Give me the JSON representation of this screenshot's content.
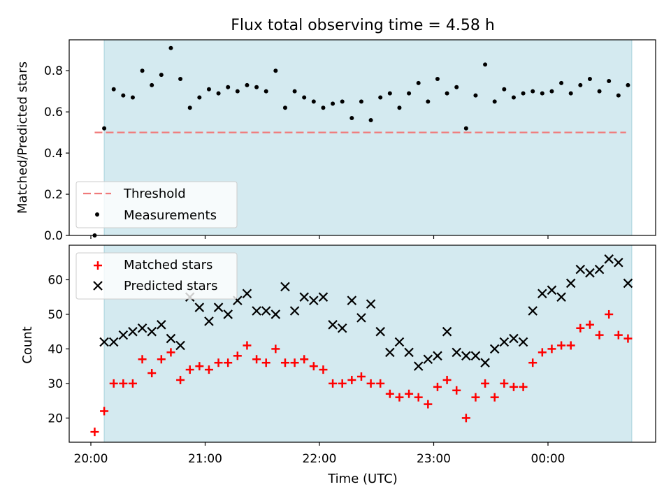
{
  "title": "Flux total observing time = 4.58 h",
  "xlabel": "Time (UTC)",
  "x_ticks": [
    "20:00",
    "21:00",
    "22:00",
    "23:00",
    "00:00"
  ],
  "observing_window": [
    "20:07",
    "00:44"
  ],
  "chart_data": [
    {
      "type": "scatter",
      "ylabel": "Matched/Predicted stars",
      "ylim": [
        0,
        0.95
      ],
      "yticks": [
        "0.0",
        "0.2",
        "0.4",
        "0.6",
        "0.8"
      ],
      "threshold": 0.5,
      "threshold_range": [
        "20:02",
        "00:41"
      ],
      "legend": {
        "placement": "lower-left",
        "entries": [
          "Threshold",
          "Measurements"
        ]
      },
      "colors": {
        "threshold": "#f07a7a",
        "measurements": "#000000",
        "window": "#d4eaf0"
      },
      "series": [
        {
          "name": "Measurements",
          "x": [
            "20:02",
            "20:07",
            "20:12",
            "20:17",
            "20:22",
            "20:27",
            "20:32",
            "20:37",
            "20:42",
            "20:47",
            "20:52",
            "20:57",
            "21:02",
            "21:07",
            "21:12",
            "21:17",
            "21:22",
            "21:27",
            "21:32",
            "21:37",
            "21:42",
            "21:47",
            "21:52",
            "21:57",
            "22:02",
            "22:07",
            "22:12",
            "22:17",
            "22:22",
            "22:27",
            "22:32",
            "22:37",
            "22:42",
            "22:47",
            "22:52",
            "22:57",
            "23:02",
            "23:07",
            "23:12",
            "23:17",
            "23:22",
            "23:27",
            "23:32",
            "23:37",
            "23:42",
            "23:47",
            "23:52",
            "23:57",
            "00:02",
            "00:07",
            "00:12",
            "00:17",
            "00:22",
            "00:27",
            "00:32",
            "00:37",
            "00:42"
          ],
          "y": [
            0.0,
            0.52,
            0.71,
            0.68,
            0.67,
            0.8,
            0.73,
            0.78,
            0.91,
            0.76,
            0.62,
            0.67,
            0.71,
            0.69,
            0.72,
            0.7,
            0.73,
            0.72,
            0.7,
            0.8,
            0.62,
            0.7,
            0.67,
            0.65,
            0.62,
            0.64,
            0.65,
            0.57,
            0.65,
            0.56,
            0.67,
            0.69,
            0.62,
            0.69,
            0.74,
            0.65,
            0.76,
            0.69,
            0.72,
            0.52,
            0.68,
            0.83,
            0.65,
            0.71,
            0.67,
            0.69,
            0.7,
            0.69,
            0.7,
            0.74,
            0.69,
            0.73,
            0.76,
            0.7,
            0.75,
            0.68,
            0.73
          ]
        }
      ]
    },
    {
      "type": "scatter",
      "ylabel": "Count",
      "ylim": [
        13,
        70
      ],
      "yticks": [
        "20",
        "30",
        "40",
        "50",
        "60"
      ],
      "legend": {
        "placement": "top-left",
        "entries": [
          "Matched stars",
          "Predicted stars"
        ]
      },
      "colors": {
        "matched": "#ff0000",
        "predicted": "#000000",
        "window": "#d4eaf0"
      },
      "x": [
        "20:02",
        "20:07",
        "20:12",
        "20:17",
        "20:22",
        "20:27",
        "20:32",
        "20:37",
        "20:42",
        "20:47",
        "20:52",
        "20:57",
        "21:02",
        "21:07",
        "21:12",
        "21:17",
        "21:22",
        "21:27",
        "21:32",
        "21:37",
        "21:42",
        "21:47",
        "21:52",
        "21:57",
        "22:02",
        "22:07",
        "22:12",
        "22:17",
        "22:22",
        "22:27",
        "22:32",
        "22:37",
        "22:42",
        "22:47",
        "22:52",
        "22:57",
        "23:02",
        "23:07",
        "23:12",
        "23:17",
        "23:22",
        "23:27",
        "23:32",
        "23:37",
        "23:42",
        "23:47",
        "23:52",
        "23:57",
        "00:02",
        "00:07",
        "00:12",
        "00:17",
        "00:22",
        "00:27",
        "00:32",
        "00:37",
        "00:42"
      ],
      "series": [
        {
          "name": "Matched stars",
          "values": [
            16,
            22,
            30,
            30,
            30,
            37,
            33,
            37,
            39,
            31,
            34,
            35,
            34,
            36,
            36,
            38,
            41,
            37,
            36,
            40,
            36,
            36,
            37,
            35,
            34,
            30,
            30,
            31,
            32,
            30,
            30,
            27,
            26,
            27,
            26,
            24,
            29,
            31,
            28,
            20,
            26,
            30,
            26,
            30,
            29,
            29,
            36,
            39,
            40,
            41,
            41,
            46,
            47,
            44,
            50,
            44,
            43
          ]
        },
        {
          "name": "Predicted stars",
          "values": [
            null,
            42,
            42,
            44,
            45,
            46,
            45,
            47,
            43,
            41,
            55,
            52,
            48,
            52,
            50,
            54,
            56,
            51,
            51,
            50,
            58,
            51,
            55,
            54,
            55,
            47,
            46,
            54,
            49,
            53,
            45,
            39,
            42,
            39,
            35,
            37,
            38,
            45,
            39,
            38,
            38,
            36,
            40,
            42,
            43,
            42,
            51,
            56,
            57,
            55,
            59,
            63,
            62,
            63,
            66,
            65,
            59
          ]
        }
      ]
    }
  ]
}
